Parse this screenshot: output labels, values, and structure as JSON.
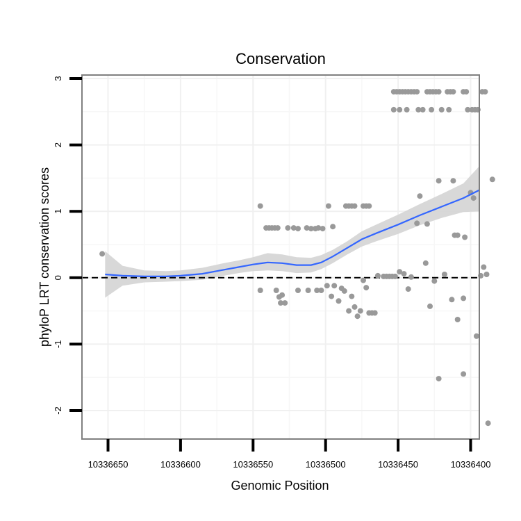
{
  "chart_data": {
    "type": "scatter",
    "title": "Conservation",
    "xlabel": "Genomic Position",
    "ylabel": "phyloP LRT conservation scores",
    "xlim": [
      10336658,
      10336396
    ],
    "x_reversed": true,
    "ylim": [
      -2.4,
      3.0
    ],
    "x_ticks": [
      10336650,
      10336600,
      10336550,
      10336500,
      10336450,
      10336400
    ],
    "x_tick_labels": [
      "10336650",
      "10336600",
      "10336550",
      "10336500",
      "10336450",
      "10336400"
    ],
    "y_ticks": [
      -2,
      -1,
      0,
      1,
      2,
      3
    ],
    "y_tick_labels": [
      "-2",
      "-1",
      "0",
      "1",
      "2",
      "3"
    ],
    "grid": true,
    "reference_line": {
      "y": 0,
      "style": "dashed",
      "color": "#000000"
    },
    "colors": {
      "points": "#999999",
      "smooth": "#3366ff",
      "ribbon": "#d4d4d4",
      "panel_border": "#7f7f7f",
      "grid_major": "#f0f0f0",
      "grid_minor": "#f7f7f7"
    },
    "points": [
      [
        10336654,
        0.36
      ],
      [
        10336545,
        1.08
      ],
      [
        10336498,
        1.08
      ],
      [
        10336541,
        0.75
      ],
      [
        10336539,
        0.75
      ],
      [
        10336537,
        0.75
      ],
      [
        10336535,
        0.75
      ],
      [
        10336533,
        0.75
      ],
      [
        10336526,
        0.75
      ],
      [
        10336522,
        0.75
      ],
      [
        10336519,
        0.74
      ],
      [
        10336513,
        0.75
      ],
      [
        10336510,
        0.74
      ],
      [
        10336507,
        0.74
      ],
      [
        10336505,
        0.75
      ],
      [
        10336502,
        0.74
      ],
      [
        10336495,
        0.77
      ],
      [
        10336486,
        1.08
      ],
      [
        10336484,
        1.08
      ],
      [
        10336482,
        1.08
      ],
      [
        10336480,
        1.08
      ],
      [
        10336474,
        1.08
      ],
      [
        10336472,
        1.08
      ],
      [
        10336470,
        1.08
      ],
      [
        10336545,
        -0.19
      ],
      [
        10336534,
        -0.19
      ],
      [
        10336532,
        -0.29
      ],
      [
        10336530,
        -0.26
      ],
      [
        10336528,
        -0.38
      ],
      [
        10336531,
        -0.38
      ],
      [
        10336519,
        -0.19
      ],
      [
        10336512,
        -0.19
      ],
      [
        10336506,
        -0.19
      ],
      [
        10336503,
        -0.19
      ],
      [
        10336499,
        -0.12
      ],
      [
        10336496,
        -0.28
      ],
      [
        10336494,
        -0.12
      ],
      [
        10336491,
        -0.35
      ],
      [
        10336489,
        -0.16
      ],
      [
        10336487,
        -0.2
      ],
      [
        10336484,
        -0.5
      ],
      [
        10336482,
        -0.28
      ],
      [
        10336480,
        -0.44
      ],
      [
        10336478,
        -0.58
      ],
      [
        10336476,
        -0.5
      ],
      [
        10336474,
        -0.04
      ],
      [
        10336472,
        -0.15
      ],
      [
        10336470,
        -0.53
      ],
      [
        10336468,
        -0.53
      ],
      [
        10336466,
        -0.53
      ],
      [
        10336464,
        0.03
      ],
      [
        10336460,
        0.02
      ],
      [
        10336458,
        0.02
      ],
      [
        10336456,
        0.02
      ],
      [
        10336454,
        0.02
      ],
      [
        10336452,
        0.02
      ],
      [
        10336449,
        0.09
      ],
      [
        10336446,
        0.06
      ],
      [
        10336443,
        -0.17
      ],
      [
        10336441,
        0.01
      ],
      [
        10336437,
        0.82
      ],
      [
        10336435,
        1.23
      ],
      [
        10336430,
        0.81
      ],
      [
        10336431,
        0.22
      ],
      [
        10336428,
        -0.43
      ],
      [
        10336425,
        -0.05
      ],
      [
        10336422,
        1.46
      ],
      [
        10336418,
        0.05
      ],
      [
        10336422,
        -1.52
      ],
      [
        10336412,
        1.46
      ],
      [
        10336413,
        -0.33
      ],
      [
        10336411,
        0.64
      ],
      [
        10336409,
        0.64
      ],
      [
        10336409,
        -0.63
      ],
      [
        10336405,
        -0.31
      ],
      [
        10336404,
        0.61
      ],
      [
        10336405,
        -1.45
      ],
      [
        10336400,
        1.28
      ],
      [
        10336398,
        1.2
      ],
      [
        10336396,
        -0.88
      ],
      [
        10336393,
        0.03
      ],
      [
        10336391,
        0.16
      ],
      [
        10336389,
        0.05
      ],
      [
        10336388,
        -2.19
      ],
      [
        10336385,
        1.48
      ],
      [
        10336453,
        2.8
      ],
      [
        10336451,
        2.8
      ],
      [
        10336449,
        2.8
      ],
      [
        10336447,
        2.8
      ],
      [
        10336445,
        2.8
      ],
      [
        10336443,
        2.8
      ],
      [
        10336441,
        2.8
      ],
      [
        10336439,
        2.8
      ],
      [
        10336437,
        2.8
      ],
      [
        10336430,
        2.8
      ],
      [
        10336428,
        2.8
      ],
      [
        10336426,
        2.8
      ],
      [
        10336424,
        2.8
      ],
      [
        10336422,
        2.8
      ],
      [
        10336416,
        2.8
      ],
      [
        10336414,
        2.8
      ],
      [
        10336412,
        2.8
      ],
      [
        10336405,
        2.8
      ],
      [
        10336403,
        2.8
      ],
      [
        10336392,
        2.8
      ],
      [
        10336390,
        2.8
      ],
      [
        10336453,
        2.53
      ],
      [
        10336449,
        2.53
      ],
      [
        10336444,
        2.53
      ],
      [
        10336436,
        2.53
      ],
      [
        10336433,
        2.53
      ],
      [
        10336427,
        2.53
      ],
      [
        10336420,
        2.53
      ],
      [
        10336415,
        2.53
      ],
      [
        10336402,
        2.53
      ],
      [
        10336399,
        2.53
      ],
      [
        10336397,
        2.53
      ],
      [
        10336395,
        2.53
      ]
    ],
    "smooth": {
      "x": [
        10336652,
        10336640,
        10336625,
        10336610,
        10336600,
        10336585,
        10336570,
        10336560,
        10336550,
        10336540,
        10336530,
        10336520,
        10336510,
        10336503,
        10336495,
        10336485,
        10336475,
        10336465,
        10336450,
        10336435,
        10336420,
        10336405,
        10336394
      ],
      "y": [
        0.05,
        0.03,
        0.02,
        0.02,
        0.03,
        0.06,
        0.12,
        0.16,
        0.2,
        0.23,
        0.22,
        0.19,
        0.19,
        0.23,
        0.32,
        0.45,
        0.58,
        0.67,
        0.8,
        0.94,
        1.07,
        1.2,
        1.32
      ],
      "lower": [
        -0.3,
        -0.12,
        -0.07,
        -0.06,
        -0.05,
        -0.03,
        0.03,
        0.07,
        0.1,
        0.11,
        0.1,
        0.07,
        0.08,
        0.13,
        0.22,
        0.35,
        0.47,
        0.55,
        0.66,
        0.79,
        0.9,
        0.99,
        1.0
      ],
      "upper": [
        0.4,
        0.18,
        0.11,
        0.1,
        0.11,
        0.15,
        0.22,
        0.26,
        0.31,
        0.37,
        0.35,
        0.31,
        0.3,
        0.34,
        0.42,
        0.55,
        0.7,
        0.8,
        0.95,
        1.11,
        1.26,
        1.42,
        1.68
      ]
    }
  }
}
